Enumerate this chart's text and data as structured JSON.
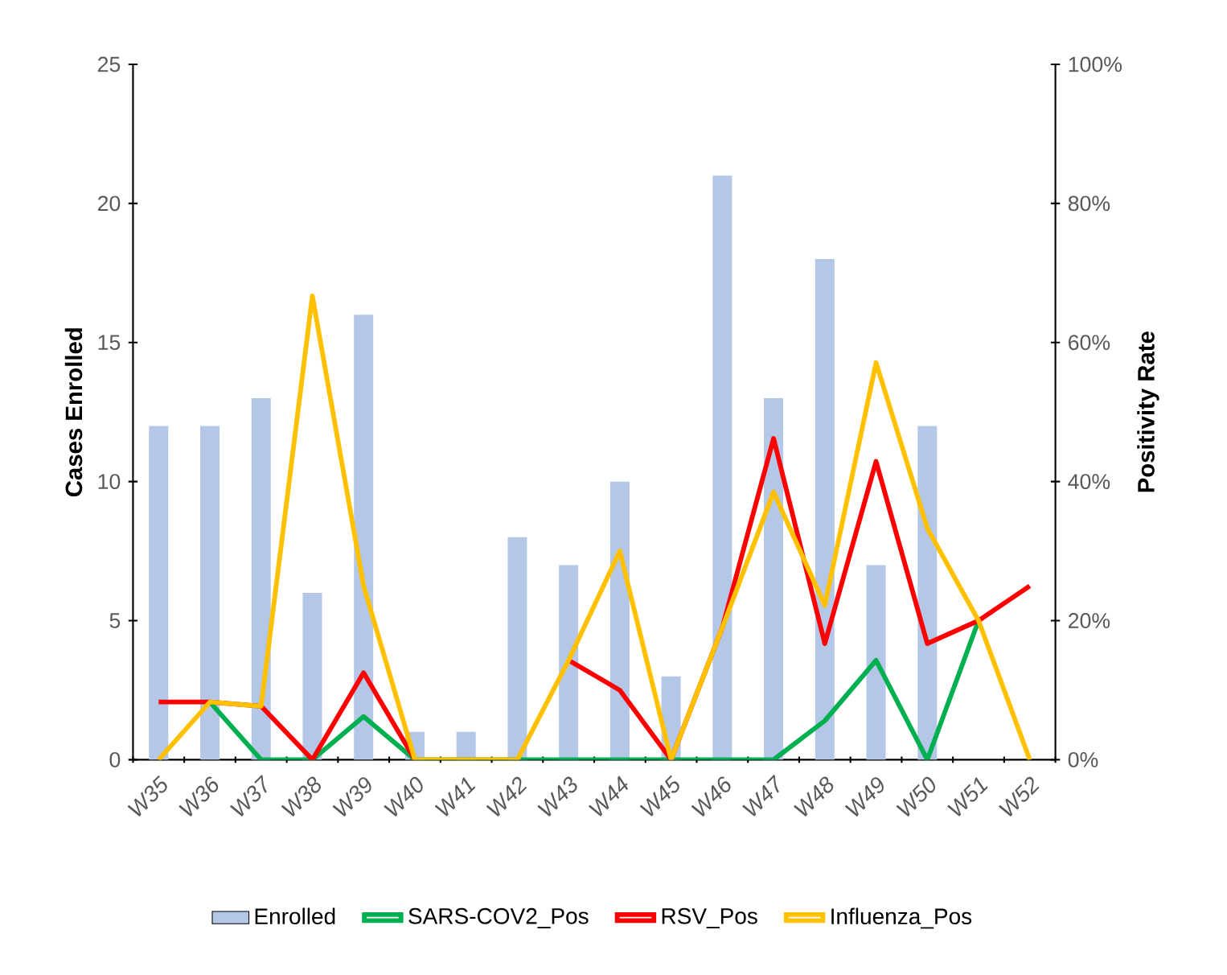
{
  "chart_data": {
    "type": "bar",
    "ylabel": "Cases Enrolled",
    "y2label": "Positivity Rate",
    "categories": [
      "W35",
      "W36",
      "W37",
      "W38",
      "W39",
      "W40",
      "W41",
      "W42",
      "W43",
      "W44",
      "W45",
      "W46",
      "W47",
      "W48",
      "W49",
      "W50",
      "W51",
      "W52"
    ],
    "ylim": [
      0,
      25
    ],
    "yticks": [
      0,
      5,
      10,
      15,
      20,
      25
    ],
    "y2lim": [
      0,
      100
    ],
    "y2ticks": [
      {
        "value": 0,
        "label": "0%"
      },
      {
        "value": 20,
        "label": "20%"
      },
      {
        "value": 40,
        "label": "40%"
      },
      {
        "value": 60,
        "label": "60%"
      },
      {
        "value": 80,
        "label": "80%"
      },
      {
        "value": 100,
        "label": "100%"
      }
    ],
    "series": [
      {
        "name": "Enrolled",
        "color": "#b4c7e7",
        "values": [
          12,
          12,
          13,
          6,
          16,
          1,
          1,
          8,
          7,
          10,
          3,
          21,
          13,
          18,
          7,
          12,
          0,
          0
        ]
      },
      {
        "name": "SARS-COV2_Pos",
        "type": "line",
        "axis": "y2",
        "color": "#00b050",
        "values": [
          null,
          8.3,
          0,
          0,
          6.2,
          0,
          0,
          0,
          0,
          0,
          0,
          0,
          0,
          5.6,
          14.3,
          0,
          20,
          null
        ]
      },
      {
        "name": "RSV_Pos",
        "type": "line",
        "axis": "y2",
        "color": "#ff0000",
        "values": [
          8.3,
          8.3,
          7.7,
          0,
          12.5,
          0,
          null,
          null,
          14.3,
          10,
          0,
          19,
          46.2,
          16.7,
          42.9,
          16.7,
          20,
          25
        ]
      },
      {
        "name": "Influenza_Pos",
        "type": "line",
        "axis": "y2",
        "color": "#ffc000",
        "values": [
          0,
          8.3,
          7.7,
          66.7,
          25,
          0,
          0,
          0,
          14.3,
          30,
          0,
          19,
          38.5,
          22.2,
          57.1,
          33.3,
          20,
          0
        ]
      }
    ],
    "grid": false,
    "legend": "bottom",
    "marker": "none",
    "line_style": "solid"
  }
}
